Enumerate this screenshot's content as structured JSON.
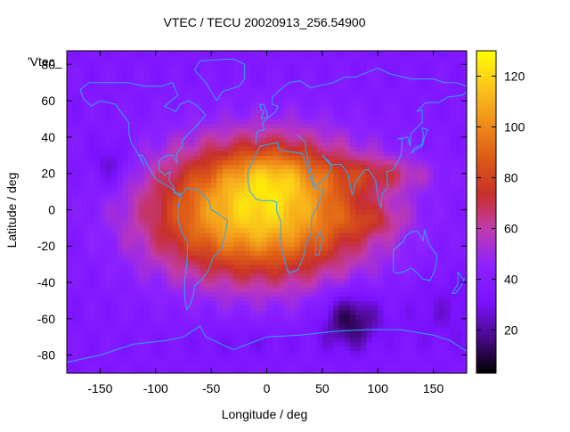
{
  "chart_data": {
    "type": "heatmap",
    "title": "VTEC / TECU 20020913_256.54900",
    "xlabel": "Longitude / deg",
    "ylabel": "Latitude / deg",
    "key_label": "'Vtec_",
    "xlim": [
      -180,
      180
    ],
    "ylim": [
      -90,
      87.5
    ],
    "xticks": [
      -150,
      -100,
      -50,
      0,
      50,
      100,
      150
    ],
    "yticks": [
      -80,
      -60,
      -40,
      -20,
      0,
      20,
      40,
      60,
      80
    ],
    "colorbar": {
      "range": [
        3,
        130
      ],
      "ticks": [
        20,
        40,
        60,
        80,
        100,
        120
      ],
      "palette": [
        "#000000",
        "#4a0a8a",
        "#7b12ff",
        "#8c22ff",
        "#c03bb0",
        "#c8302a",
        "#dd5a16",
        "#f08f1a",
        "#fbc61b",
        "#ffff00"
      ]
    },
    "grid": {
      "lon_step": 5,
      "lat_step": 2.5,
      "features": [
        {
          "lon": 0,
          "lat": 0,
          "slon": 95,
          "slat": 38,
          "amp": 80
        },
        {
          "lon": -70,
          "lat": -5,
          "slon": 70,
          "slat": 32,
          "amp": 10
        },
        {
          "lon": 5,
          "lat": 20,
          "slon": 40,
          "slat": 14,
          "amp": 18
        },
        {
          "lon": 105,
          "lat": 20,
          "slon": 45,
          "slat": 9,
          "amp": 18
        },
        {
          "lon": 95,
          "lat": -6,
          "slon": 30,
          "slat": 8,
          "amp": 12
        },
        {
          "lon": -140,
          "lat": 25,
          "slon": 18,
          "slat": 14,
          "amp": -15
        },
        {
          "lon": 75,
          "lat": -60,
          "slon": 25,
          "slat": 15,
          "amp": -28
        },
        {
          "lon": -20,
          "lat": -72,
          "slon": 60,
          "slat": 10,
          "amp": -6
        },
        {
          "lon": 160,
          "lat": -55,
          "slon": 40,
          "slat": 20,
          "amp": -8
        }
      ],
      "background": 36
    },
    "coastlines": [
      {
        "name": "north-america",
        "pts": [
          [
            -168,
            66
          ],
          [
            -160,
            70
          ],
          [
            -140,
            70
          ],
          [
            -125,
            70
          ],
          [
            -110,
            68
          ],
          [
            -95,
            68
          ],
          [
            -85,
            70
          ],
          [
            -80,
            63
          ],
          [
            -92,
            57
          ],
          [
            -82,
            54
          ],
          [
            -78,
            58
          ],
          [
            -70,
            60
          ],
          [
            -62,
            57
          ],
          [
            -55,
            52
          ],
          [
            -65,
            45
          ],
          [
            -70,
            42
          ],
          [
            -76,
            38
          ],
          [
            -76,
            35
          ],
          [
            -81,
            31
          ],
          [
            -80,
            26
          ],
          [
            -82,
            27
          ],
          [
            -84,
            30
          ],
          [
            -90,
            30
          ],
          [
            -97,
            27
          ],
          [
            -97,
            22
          ],
          [
            -92,
            19
          ],
          [
            -87,
            21
          ],
          [
            -88,
            16
          ],
          [
            -84,
            13
          ],
          [
            -83,
            9
          ],
          [
            -79,
            9
          ],
          [
            -77,
            8
          ],
          [
            -80,
            8
          ],
          [
            -86,
            12
          ],
          [
            -92,
            14
          ],
          [
            -100,
            17
          ],
          [
            -106,
            23
          ],
          [
            -112,
            30
          ],
          [
            -115,
            30
          ],
          [
            -110,
            24
          ],
          [
            -118,
            33
          ],
          [
            -122,
            37
          ],
          [
            -124,
            42
          ],
          [
            -124,
            48
          ],
          [
            -128,
            51
          ],
          [
            -136,
            58
          ],
          [
            -150,
            60
          ],
          [
            -158,
            57
          ],
          [
            -165,
            61
          ],
          [
            -168,
            66
          ]
        ]
      },
      {
        "name": "south-america",
        "pts": [
          [
            -77,
            8
          ],
          [
            -72,
            12
          ],
          [
            -62,
            11
          ],
          [
            -52,
            5
          ],
          [
            -50,
            0
          ],
          [
            -44,
            -2
          ],
          [
            -35,
            -6
          ],
          [
            -37,
            -12
          ],
          [
            -39,
            -17
          ],
          [
            -41,
            -22
          ],
          [
            -48,
            -26
          ],
          [
            -53,
            -34
          ],
          [
            -58,
            -38
          ],
          [
            -65,
            -42
          ],
          [
            -66,
            -47
          ],
          [
            -69,
            -52
          ],
          [
            -72,
            -55
          ],
          [
            -74,
            -48
          ],
          [
            -74,
            -40
          ],
          [
            -72,
            -30
          ],
          [
            -71,
            -18
          ],
          [
            -76,
            -13
          ],
          [
            -80,
            -5
          ],
          [
            -80,
            0
          ],
          [
            -78,
            7
          ],
          [
            -77,
            8
          ]
        ]
      },
      {
        "name": "greenland",
        "pts": [
          [
            -45,
            60
          ],
          [
            -50,
            65
          ],
          [
            -55,
            70
          ],
          [
            -65,
            77
          ],
          [
            -60,
            82
          ],
          [
            -30,
            83
          ],
          [
            -20,
            80
          ],
          [
            -20,
            72
          ],
          [
            -25,
            68
          ],
          [
            -40,
            65
          ],
          [
            -45,
            60
          ]
        ]
      },
      {
        "name": "africa",
        "pts": [
          [
            -17,
            21
          ],
          [
            -10,
            30
          ],
          [
            -6,
            35
          ],
          [
            10,
            37
          ],
          [
            11,
            33
          ],
          [
            20,
            32
          ],
          [
            32,
            31
          ],
          [
            34,
            28
          ],
          [
            40,
            16
          ],
          [
            43,
            12
          ],
          [
            51,
            11
          ],
          [
            48,
            5
          ],
          [
            40,
            -5
          ],
          [
            40,
            -12
          ],
          [
            35,
            -20
          ],
          [
            33,
            -26
          ],
          [
            28,
            -33
          ],
          [
            20,
            -35
          ],
          [
            18,
            -32
          ],
          [
            15,
            -25
          ],
          [
            12,
            -17
          ],
          [
            13,
            -7
          ],
          [
            9,
            -1
          ],
          [
            9,
            4
          ],
          [
            5,
            5
          ],
          [
            -5,
            5
          ],
          [
            -10,
            6
          ],
          [
            -15,
            10
          ],
          [
            -17,
            15
          ],
          [
            -17,
            21
          ]
        ]
      },
      {
        "name": "eurasia",
        "pts": [
          [
            -10,
            36
          ],
          [
            -9,
            43
          ],
          [
            -2,
            44
          ],
          [
            -4,
            48
          ],
          [
            2,
            51
          ],
          [
            8,
            54
          ],
          [
            10,
            57
          ],
          [
            5,
            58
          ],
          [
            5,
            62
          ],
          [
            12,
            66
          ],
          [
            20,
            70
          ],
          [
            30,
            71
          ],
          [
            40,
            67
          ],
          [
            45,
            68
          ],
          [
            60,
            70
          ],
          [
            70,
            73
          ],
          [
            80,
            73
          ],
          [
            100,
            78
          ],
          [
            110,
            75
          ],
          [
            130,
            72
          ],
          [
            150,
            72
          ],
          [
            160,
            70
          ],
          [
            170,
            70
          ],
          [
            180,
            68
          ]
        ]
      },
      {
        "name": "asia-south",
        "pts": [
          [
            28,
            41
          ],
          [
            35,
            37
          ],
          [
            35,
            33
          ],
          [
            43,
            13
          ],
          [
            53,
            17
          ],
          [
            58,
            23
          ],
          [
            57,
            26
          ],
          [
            50,
            30
          ],
          [
            57,
            25
          ],
          [
            67,
            25
          ],
          [
            73,
            20
          ],
          [
            77,
            8
          ],
          [
            80,
            15
          ],
          [
            88,
            22
          ],
          [
            92,
            22
          ],
          [
            98,
            16
          ],
          [
            100,
            7
          ],
          [
            103,
            1
          ],
          [
            104,
            9
          ],
          [
            106,
            10
          ],
          [
            109,
            12
          ],
          [
            108,
            21
          ],
          [
            114,
            22
          ],
          [
            121,
            30
          ],
          [
            122,
            39
          ],
          [
            118,
            39
          ],
          [
            127,
            40
          ],
          [
            129,
            35
          ],
          [
            130,
            42
          ],
          [
            140,
            48
          ],
          [
            140,
            55
          ],
          [
            135,
            54
          ],
          [
            143,
            59
          ],
          [
            155,
            59
          ],
          [
            163,
            62
          ],
          [
            176,
            63
          ],
          [
            180,
            65
          ]
        ]
      },
      {
        "name": "australia",
        "pts": [
          [
            114,
            -22
          ],
          [
            114,
            -34
          ],
          [
            118,
            -35
          ],
          [
            124,
            -34
          ],
          [
            130,
            -32
          ],
          [
            136,
            -35
          ],
          [
            140,
            -38
          ],
          [
            147,
            -39
          ],
          [
            151,
            -34
          ],
          [
            153,
            -28
          ],
          [
            153,
            -25
          ],
          [
            146,
            -19
          ],
          [
            142,
            -11
          ],
          [
            141,
            -17
          ],
          [
            136,
            -12
          ],
          [
            131,
            -12
          ],
          [
            126,
            -14
          ],
          [
            122,
            -18
          ],
          [
            114,
            -22
          ]
        ]
      },
      {
        "name": "uk",
        "pts": [
          [
            -5,
            50
          ],
          [
            1,
            51
          ],
          [
            0,
            54
          ],
          [
            -3,
            58
          ],
          [
            -6,
            58
          ],
          [
            -5,
            55
          ],
          [
            -3,
            54
          ],
          [
            -5,
            50
          ]
        ]
      },
      {
        "name": "japan",
        "pts": [
          [
            130,
            31
          ],
          [
            133,
            34
          ],
          [
            140,
            36
          ],
          [
            141,
            41
          ],
          [
            140,
            45
          ],
          [
            145,
            44
          ],
          [
            142,
            40
          ],
          [
            140,
            35
          ],
          [
            134,
            33
          ],
          [
            130,
            31
          ]
        ]
      },
      {
        "name": "madagascar",
        "pts": [
          [
            44,
            -25
          ],
          [
            47,
            -25
          ],
          [
            50,
            -16
          ],
          [
            49,
            -12
          ],
          [
            44,
            -16
          ],
          [
            44,
            -25
          ]
        ]
      },
      {
        "name": "new-zealand",
        "pts": [
          [
            172,
            -34
          ],
          [
            176,
            -38
          ],
          [
            178,
            -38
          ],
          [
            175,
            -42
          ],
          [
            170,
            -46
          ],
          [
            167,
            -46
          ],
          [
            172,
            -41
          ],
          [
            172,
            -34
          ]
        ]
      },
      {
        "name": "antarctica",
        "pts": [
          [
            -180,
            -84
          ],
          [
            -150,
            -80
          ],
          [
            -120,
            -74
          ],
          [
            -90,
            -72
          ],
          [
            -75,
            -70
          ],
          [
            -60,
            -64
          ],
          [
            -55,
            -70
          ],
          [
            -30,
            -77
          ],
          [
            0,
            -70
          ],
          [
            30,
            -69
          ],
          [
            60,
            -67
          ],
          [
            90,
            -66
          ],
          [
            120,
            -66
          ],
          [
            150,
            -69
          ],
          [
            165,
            -72
          ],
          [
            180,
            -78
          ]
        ]
      }
    ]
  }
}
